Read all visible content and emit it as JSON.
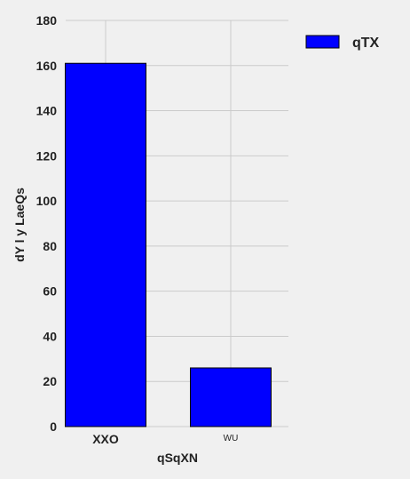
{
  "chart_data": {
    "type": "bar",
    "categories": [
      "XXO",
      "WU"
    ],
    "series": [
      {
        "name": "qTX",
        "values": [
          161,
          26
        ],
        "color": "#0000ff"
      }
    ],
    "xlabel": "qSqXN",
    "ylabel": "dY l y LaeQs",
    "ylim": [
      0,
      180
    ],
    "yticks": [
      0,
      20,
      40,
      60,
      80,
      100,
      120,
      140,
      160,
      180
    ],
    "grid": true,
    "legend": "top-right",
    "bar_edge_color": "#000000",
    "background": "#f0f0f0",
    "grid_color": "#cbcbcb"
  }
}
